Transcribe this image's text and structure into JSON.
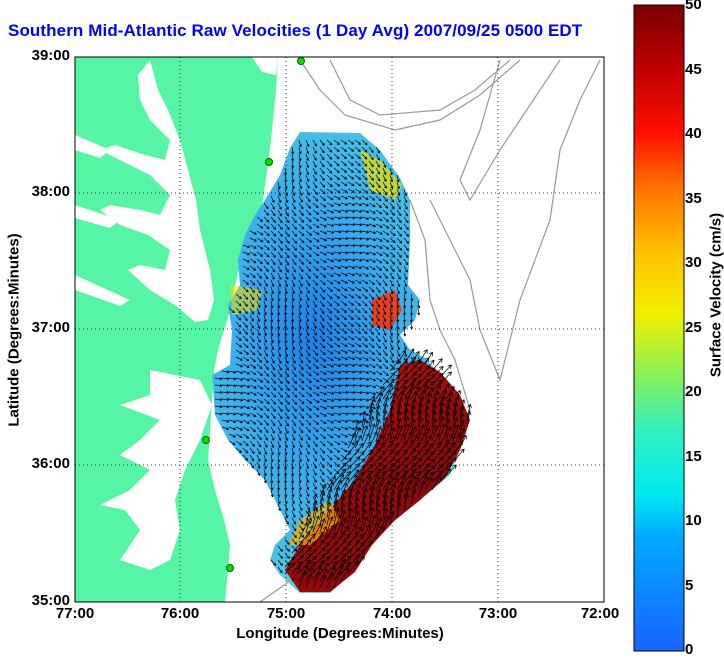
{
  "title": "Southern Mid-Atlantic Raw Velocities (1 Day Avg) 2007/09/25 0500 EDT",
  "x_axis": {
    "label": "Longitude (Degrees:Minutes)",
    "ticks": [
      "77:00",
      "76:00",
      "75:00",
      "74:00",
      "73:00",
      "72:00"
    ],
    "range": [
      -77,
      -72
    ]
  },
  "y_axis": {
    "label": "Latitude (Degrees:Minutes)",
    "ticks": [
      "39:00",
      "38:00",
      "37:00",
      "36:00",
      "35:00"
    ],
    "range": [
      35,
      39
    ]
  },
  "colorbar": {
    "label": "Surface Velocity (cm/s)",
    "ticks": [
      "50",
      "45",
      "40",
      "35",
      "30",
      "25",
      "20",
      "15",
      "10",
      "5",
      "0"
    ],
    "range": [
      0,
      50
    ]
  },
  "grid": "dotted",
  "colors": {
    "land": "#55f5a5",
    "title": "#0000ff",
    "site_marker": "#00dd00"
  }
}
